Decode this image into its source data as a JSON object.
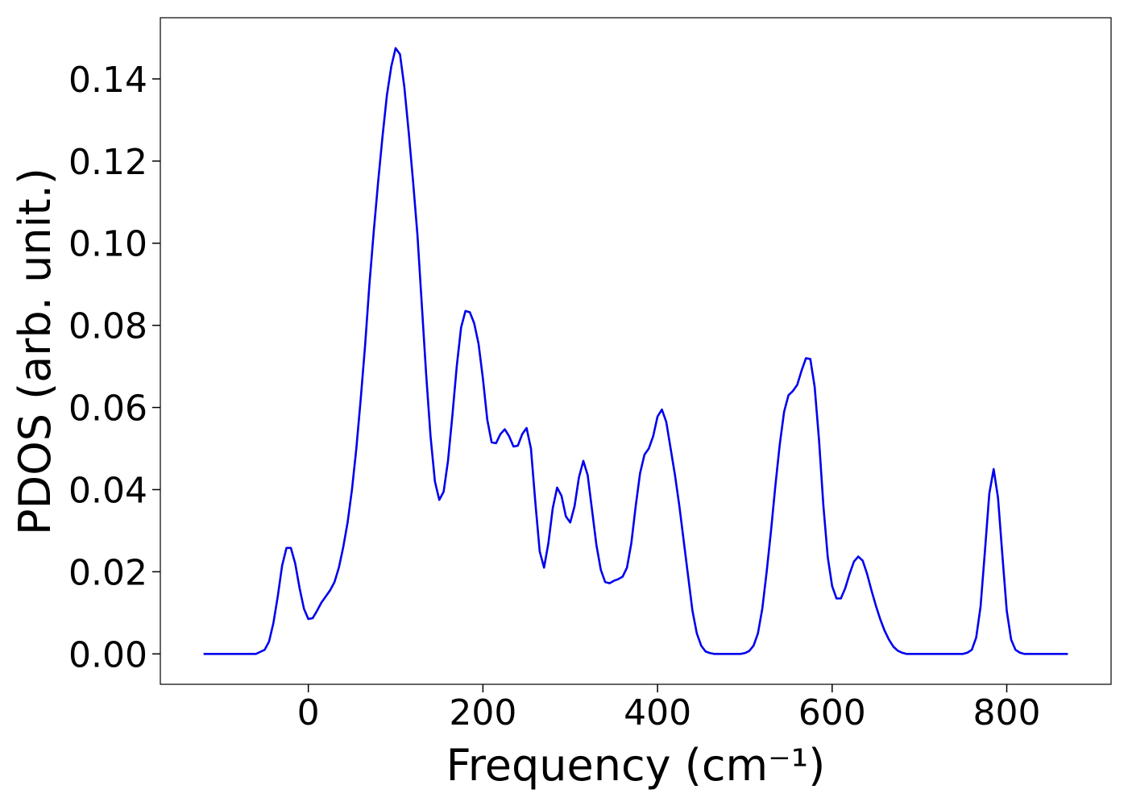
{
  "chart_data": {
    "type": "line",
    "xlabel": "Frequency (cm⁻¹)",
    "ylabel": "PDOS (arb. unit.)",
    "x": [
      -120,
      -115,
      -110,
      -105,
      -100,
      -95,
      -90,
      -85,
      -80,
      -75,
      -70,
      -65,
      -60,
      -55,
      -50,
      -45,
      -40,
      -35,
      -30,
      -25,
      -20,
      -15,
      -10,
      -5,
      0,
      5,
      10,
      15,
      20,
      25,
      30,
      35,
      40,
      45,
      50,
      55,
      60,
      65,
      70,
      75,
      80,
      85,
      90,
      95,
      100,
      105,
      110,
      115,
      120,
      125,
      130,
      135,
      140,
      145,
      150,
      155,
      160,
      165,
      170,
      175,
      180,
      185,
      190,
      195,
      200,
      205,
      210,
      215,
      220,
      225,
      230,
      235,
      240,
      245,
      250,
      255,
      260,
      265,
      270,
      275,
      280,
      285,
      290,
      295,
      300,
      305,
      310,
      315,
      320,
      325,
      330,
      335,
      340,
      345,
      350,
      355,
      360,
      365,
      370,
      375,
      380,
      385,
      390,
      395,
      400,
      405,
      410,
      415,
      420,
      425,
      430,
      435,
      440,
      445,
      450,
      455,
      460,
      465,
      470,
      475,
      480,
      485,
      490,
      495,
      500,
      505,
      510,
      515,
      520,
      525,
      530,
      535,
      540,
      545,
      550,
      555,
      560,
      565,
      570,
      575,
      580,
      585,
      590,
      595,
      600,
      605,
      610,
      615,
      620,
      625,
      630,
      635,
      640,
      645,
      650,
      655,
      660,
      665,
      670,
      675,
      680,
      685,
      690,
      695,
      700,
      705,
      710,
      715,
      720,
      725,
      730,
      735,
      740,
      745,
      750,
      755,
      760,
      765,
      770,
      775,
      780,
      785,
      790,
      795,
      800,
      805,
      810,
      815,
      820,
      825,
      830,
      835,
      840,
      845,
      850,
      855,
      860,
      865,
      870
    ],
    "series": [
      {
        "name": "PDOS",
        "color": "#0000ee",
        "values": [
          0,
          0,
          0,
          0,
          0,
          0,
          0,
          0,
          0,
          0,
          0,
          0,
          0,
          0.0005,
          0.001,
          0.003,
          0.0075,
          0.014,
          0.0215,
          0.0258,
          0.0258,
          0.022,
          0.016,
          0.011,
          0.0085,
          0.0087,
          0.0105,
          0.0125,
          0.014,
          0.0155,
          0.0175,
          0.021,
          0.026,
          0.032,
          0.04,
          0.05,
          0.062,
          0.075,
          0.09,
          0.103,
          0.115,
          0.126,
          0.136,
          0.143,
          0.1475,
          0.146,
          0.138,
          0.127,
          0.115,
          0.102,
          0.085,
          0.068,
          0.053,
          0.042,
          0.0375,
          0.0395,
          0.047,
          0.058,
          0.07,
          0.0795,
          0.0835,
          0.0832,
          0.0805,
          0.0755,
          0.067,
          0.057,
          0.0515,
          0.0513,
          0.0535,
          0.0547,
          0.053,
          0.0505,
          0.0507,
          0.0535,
          0.055,
          0.05,
          0.037,
          0.025,
          0.021,
          0.027,
          0.0355,
          0.0405,
          0.0385,
          0.0335,
          0.032,
          0.036,
          0.043,
          0.047,
          0.0435,
          0.035,
          0.0265,
          0.0205,
          0.0175,
          0.0172,
          0.0178,
          0.0182,
          0.0188,
          0.021,
          0.027,
          0.036,
          0.044,
          0.0485,
          0.05,
          0.053,
          0.0578,
          0.0595,
          0.0565,
          0.05,
          0.0435,
          0.036,
          0.0275,
          0.019,
          0.0105,
          0.005,
          0.002,
          0.0006,
          0.0002,
          0,
          0,
          0,
          0,
          0,
          0,
          0,
          0.0002,
          0.0007,
          0.002,
          0.005,
          0.011,
          0.02,
          0.03,
          0.041,
          0.051,
          0.059,
          0.063,
          0.064,
          0.0655,
          0.069,
          0.072,
          0.0718,
          0.065,
          0.052,
          0.036,
          0.0235,
          0.0165,
          0.0135,
          0.0135,
          0.016,
          0.0195,
          0.0225,
          0.0237,
          0.0227,
          0.0195,
          0.0155,
          0.0118,
          0.0085,
          0.0057,
          0.0035,
          0.0018,
          0.0008,
          0.0003,
          0,
          0,
          0,
          0,
          0,
          0,
          0,
          0,
          0,
          0,
          0,
          0,
          0,
          0,
          0.0003,
          0.001,
          0.004,
          0.0115,
          0.025,
          0.039,
          0.045,
          0.038,
          0.024,
          0.0105,
          0.0035,
          0.001,
          0.0003,
          0,
          0,
          0,
          0,
          0,
          0,
          0,
          0,
          0,
          0,
          0
        ]
      }
    ],
    "xlim": [
      -169.5,
      919.5
    ],
    "ylim": [
      -0.0074,
      0.1549
    ],
    "xticks": [
      0,
      200,
      400,
      600,
      800
    ],
    "yticks": [
      {
        "value": 0,
        "label": "0.00"
      },
      0.02,
      0.04,
      0.06,
      0.08,
      {
        "value": 0.1,
        "label": "0.10"
      },
      0.12,
      0.14
    ]
  }
}
